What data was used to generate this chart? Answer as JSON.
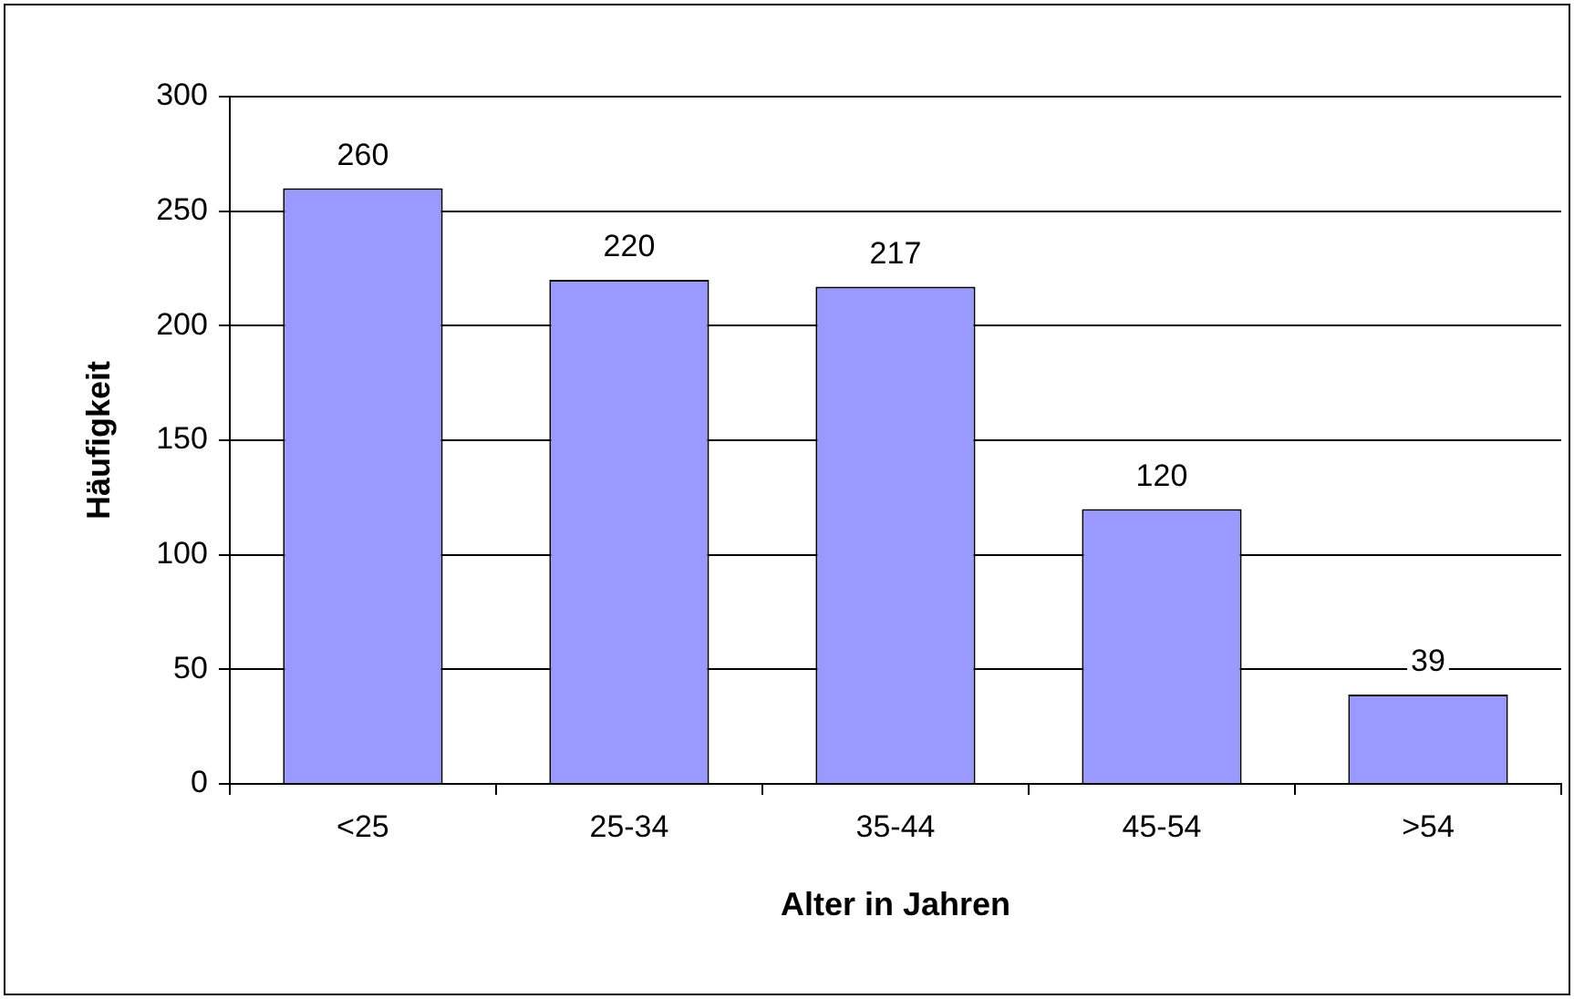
{
  "chart_data": {
    "type": "bar",
    "xlabel": "Alter in Jahren",
    "ylabel": "Häufigkeit",
    "categories": [
      "<25",
      "25-34",
      "35-44",
      "45-54",
      ">54"
    ],
    "values": [
      260,
      220,
      217,
      120,
      39
    ],
    "color": "#9999ff",
    "ylim": [
      0,
      300
    ],
    "yticks": [
      0,
      50,
      100,
      150,
      200,
      250,
      300
    ],
    "grid": "y",
    "data_labels": true
  }
}
